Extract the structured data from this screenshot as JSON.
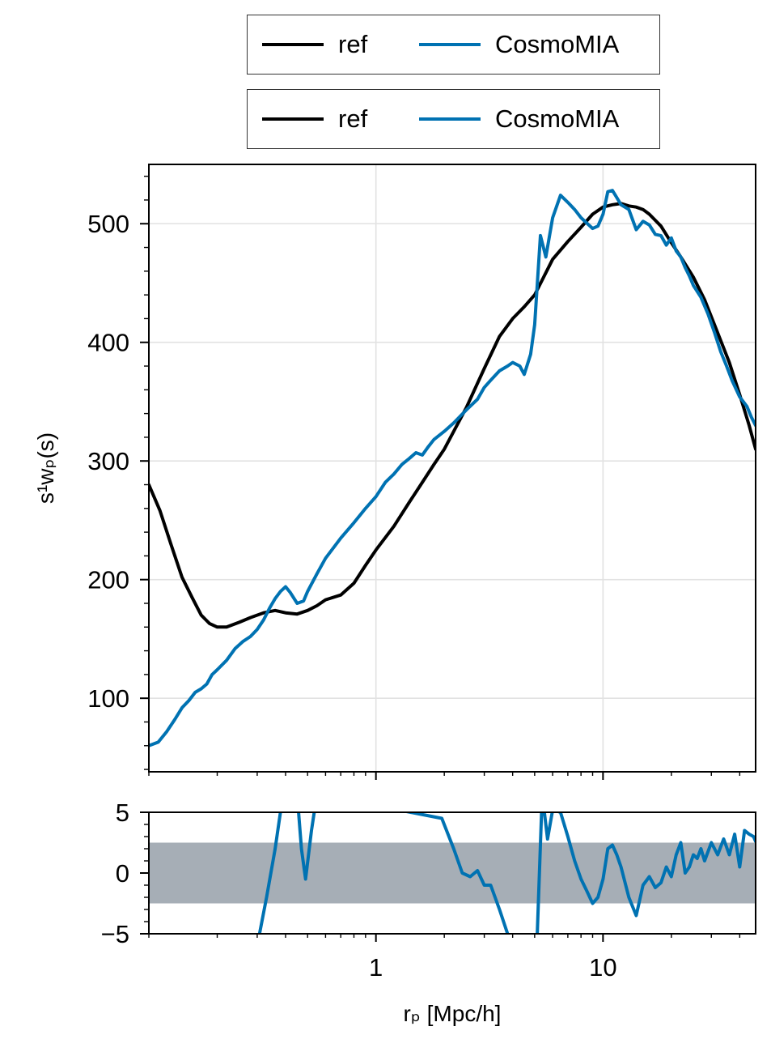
{
  "legends": [
    {
      "entries": [
        {
          "label": "ref",
          "color": "#000000"
        },
        {
          "label": "CosmoMIA",
          "color": "#0072b2"
        }
      ]
    },
    {
      "entries": [
        {
          "label": "ref",
          "color": "#000000"
        },
        {
          "label": "CosmoMIA",
          "color": "#0072b2"
        }
      ]
    }
  ],
  "chart_data": [
    {
      "type": "line",
      "xscale": "log",
      "xlim": [
        0.1,
        47
      ],
      "ylim": [
        38,
        550
      ],
      "ylabel": "s¹wₚ(s)",
      "yticks": [
        100,
        200,
        300,
        400,
        500
      ],
      "ytick_labels": [
        "100",
        "200",
        "300",
        "400",
        "500"
      ],
      "grid": true,
      "series": [
        {
          "name": "ref",
          "color": "#000000",
          "x": [
            0.1,
            0.112,
            0.125,
            0.14,
            0.155,
            0.17,
            0.185,
            0.2,
            0.22,
            0.25,
            0.28,
            0.32,
            0.36,
            0.4,
            0.45,
            0.5,
            0.55,
            0.6,
            0.7,
            0.8,
            0.9,
            1.0,
            1.2,
            1.4,
            1.6,
            1.8,
            2.0,
            2.5,
            3.0,
            3.5,
            4.0,
            4.5,
            5.0,
            6.0,
            7.0,
            8.0,
            9.0,
            10.0,
            11.0,
            12.0,
            13.0,
            14.0,
            15.0,
            16.0,
            18.0,
            20.0,
            22.0,
            25.0,
            28.0,
            32.0,
            36.0,
            40.0,
            44.0,
            47.0
          ],
          "y": [
            280,
            258,
            230,
            202,
            185,
            170,
            163,
            160,
            160,
            164,
            168,
            172,
            174,
            172,
            171,
            174,
            178,
            183,
            187,
            197,
            212,
            225,
            245,
            265,
            282,
            297,
            310,
            345,
            378,
            405,
            420,
            430,
            440,
            470,
            485,
            497,
            508,
            514,
            516,
            517,
            515,
            514,
            512,
            508,
            498,
            484,
            472,
            455,
            436,
            408,
            383,
            356,
            330,
            310
          ]
        },
        {
          "name": "CosmoMIA",
          "color": "#0072b2",
          "x": [
            0.1,
            0.11,
            0.12,
            0.13,
            0.14,
            0.15,
            0.16,
            0.17,
            0.18,
            0.19,
            0.2,
            0.22,
            0.24,
            0.26,
            0.28,
            0.3,
            0.32,
            0.34,
            0.36,
            0.38,
            0.4,
            0.42,
            0.45,
            0.48,
            0.5,
            0.55,
            0.6,
            0.7,
            0.8,
            0.9,
            1.0,
            1.1,
            1.2,
            1.3,
            1.4,
            1.5,
            1.6,
            1.7,
            1.8,
            2.0,
            2.2,
            2.5,
            2.8,
            3.0,
            3.2,
            3.5,
            3.8,
            4.0,
            4.3,
            4.5,
            4.8,
            5.0,
            5.3,
            5.6,
            6.0,
            6.5,
            7.0,
            7.5,
            8.0,
            9.0,
            9.5,
            10.0,
            10.5,
            11.0,
            11.5,
            12.0,
            13.0,
            14.0,
            15.0,
            16.0,
            17.0,
            18.0,
            19.0,
            20.0,
            21.0,
            22.0,
            23.0,
            24.0,
            25.0,
            27.0,
            29.0,
            31.0,
            33.0,
            35.0,
            37.0,
            40.0,
            43.0,
            45.0,
            47.0
          ],
          "y": [
            60,
            63,
            72,
            82,
            92,
            98,
            105,
            108,
            112,
            120,
            124,
            132,
            142,
            148,
            152,
            158,
            166,
            176,
            184,
            190,
            194,
            189,
            180,
            182,
            190,
            205,
            218,
            235,
            248,
            260,
            270,
            282,
            289,
            297,
            302,
            307,
            305,
            312,
            318,
            325,
            332,
            343,
            352,
            362,
            368,
            376,
            380,
            383,
            380,
            373,
            390,
            415,
            490,
            472,
            505,
            524,
            518,
            512,
            505,
            496,
            498,
            508,
            527,
            528,
            522,
            516,
            512,
            495,
            502,
            499,
            491,
            490,
            482,
            488,
            477,
            472,
            463,
            456,
            448,
            438,
            424,
            408,
            392,
            380,
            368,
            354,
            346,
            337,
            330
          ]
        }
      ]
    },
    {
      "type": "line",
      "xscale": "log",
      "xlim": [
        0.1,
        47
      ],
      "ylim": [
        -5,
        5
      ],
      "xlabel": "rₚ [Mpc/h]",
      "xticks": [
        1,
        10
      ],
      "xtick_labels": [
        "1",
        "10"
      ],
      "yticks": [
        -5,
        0,
        5
      ],
      "ytick_labels": [
        "−5",
        "0",
        "5"
      ],
      "band": {
        "y0": -2.5,
        "y1": 2.5,
        "color": "#a6aeb6"
      },
      "series": [
        {
          "name": "CosmoMIA",
          "color": "#0072b2",
          "x": [
            0.3,
            0.33,
            0.36,
            0.39,
            0.42,
            0.45,
            0.47,
            0.49,
            0.52,
            0.55,
            1.95,
            2.2,
            2.4,
            2.6,
            2.8,
            3.0,
            3.2,
            3.5,
            3.8,
            4.1,
            5.1,
            5.4,
            5.7,
            6.0,
            6.5,
            7.0,
            7.5,
            8.0,
            8.5,
            9.0,
            9.5,
            10.0,
            10.5,
            11.0,
            11.5,
            12.0,
            13.0,
            14.0,
            15.0,
            16.0,
            17.0,
            18.0,
            19.0,
            20.0,
            21.0,
            22.0,
            23.0,
            24.0,
            25.0,
            26.0,
            27.0,
            28.0,
            30.0,
            32.0,
            34.0,
            36.0,
            38.0,
            40.0,
            42.0,
            44.0,
            46.0,
            47.0
          ],
          "y": [
            -6,
            -2,
            2,
            6.5,
            6.5,
            6.5,
            2.0,
            -0.5,
            3.5,
            6.5,
            4.5,
            2.0,
            0,
            -0.3,
            0.2,
            -1.0,
            -1.0,
            -3.0,
            -5.0,
            -6.5,
            -6.5,
            6.5,
            2.8,
            5.2,
            5.0,
            3.0,
            1.0,
            -0.5,
            -1.5,
            -2.5,
            -2.0,
            -0.5,
            2.0,
            2.3,
            1.5,
            0.5,
            -2.0,
            -3.5,
            -1.0,
            -0.3,
            -1.2,
            -0.8,
            0.5,
            -0.3,
            1.5,
            2.5,
            0.0,
            0.5,
            1.5,
            1.2,
            2.0,
            1.0,
            2.5,
            1.5,
            2.8,
            1.5,
            3.2,
            0.5,
            3.5,
            3.2,
            3.0,
            2.6
          ]
        }
      ]
    }
  ]
}
